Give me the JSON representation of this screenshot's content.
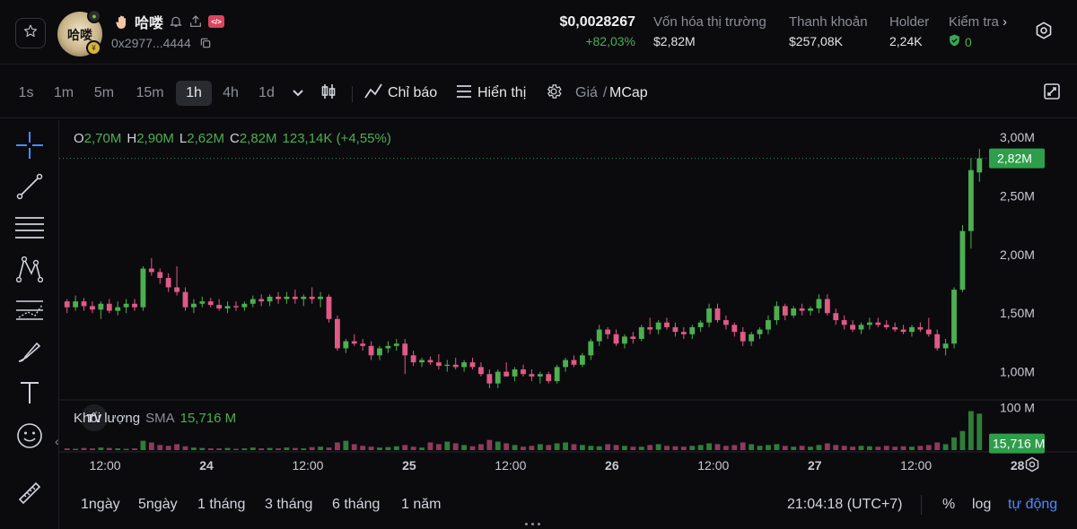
{
  "header": {
    "token_name": "哈喽",
    "avatar_text": "哈喽",
    "address": "0x2977...4444",
    "price": "$0,0028267",
    "price_change": "+82,03%",
    "stats": [
      {
        "label": "Vốn hóa thị trường",
        "value": "$2,82M"
      },
      {
        "label": "Thanh khoản",
        "value": "$257,08K"
      },
      {
        "label": "Holder",
        "value": "2,24K"
      },
      {
        "label": "Kiểm tra",
        "value": "0"
      }
    ],
    "icons": [
      "star-icon",
      "wave-hand-icon",
      "bell-icon",
      "share-icon",
      "code-icon",
      "copy-icon",
      "shield-check-icon",
      "settings-icon"
    ]
  },
  "toolbar": {
    "timeframes": [
      "1s",
      "1m",
      "5m",
      "15m",
      "1h",
      "4h",
      "1d"
    ],
    "active_timeframe": "1h",
    "indicators_label": "Chỉ báo",
    "display_label": "Hiển thị",
    "price_label": "Giá",
    "separator": "/",
    "mcap_label": "MCap"
  },
  "legend": {
    "o_key": "O",
    "o_val": "2,70M",
    "h_key": "H",
    "h_val": "2,90M",
    "l_key": "L",
    "l_val": "2,62M",
    "c_key": "C",
    "c_val": "2,82M",
    "change": "123,14K (+4,55%)"
  },
  "volume_legend": {
    "label": "Khối lượng",
    "sma_label": "SMA",
    "sma_value": "15,716 M"
  },
  "chart_data": {
    "type": "candlestick",
    "y_unit": "market cap (M)",
    "ylim": [
      0.76,
      3.1
    ],
    "price_ticks": [
      "3,00M",
      "2,50M",
      "2,00M",
      "1,50M",
      "1,00M"
    ],
    "price_tick_values": [
      3.0,
      2.5,
      2.0,
      1.5,
      1.0
    ],
    "current_value": 2.82,
    "current_label": "2,82M",
    "volume_ticks": [
      "100 M"
    ],
    "volume_tick_values": [
      100
    ],
    "volume_max": 110,
    "sma_value": 15.716,
    "sma_label": "15,716 M",
    "x_labels": [
      "12:00",
      "24",
      "12:00",
      "25",
      "12:00",
      "26",
      "12:00",
      "27",
      "12:00",
      "28"
    ],
    "x_label_index": [
      4.5,
      16.5,
      28.5,
      40.5,
      52.5,
      64.5,
      76.5,
      88.5,
      100.5,
      112.5
    ],
    "ohlc": [
      [
        1.6,
        1.62,
        1.5,
        1.55
      ],
      [
        1.55,
        1.65,
        1.52,
        1.6
      ],
      [
        1.6,
        1.63,
        1.52,
        1.56
      ],
      [
        1.56,
        1.6,
        1.5,
        1.53
      ],
      [
        1.53,
        1.6,
        1.45,
        1.58
      ],
      [
        1.58,
        1.62,
        1.5,
        1.52
      ],
      [
        1.52,
        1.6,
        1.48,
        1.55
      ],
      [
        1.55,
        1.62,
        1.5,
        1.58
      ],
      [
        1.58,
        1.62,
        1.52,
        1.55
      ],
      [
        1.55,
        1.9,
        1.52,
        1.88
      ],
      [
        1.88,
        1.97,
        1.82,
        1.85
      ],
      [
        1.85,
        1.88,
        1.75,
        1.8
      ],
      [
        1.8,
        1.84,
        1.68,
        1.72
      ],
      [
        1.72,
        1.9,
        1.65,
        1.68
      ],
      [
        1.68,
        1.72,
        1.52,
        1.55
      ],
      [
        1.55,
        1.62,
        1.5,
        1.58
      ],
      [
        1.58,
        1.64,
        1.55,
        1.6
      ],
      [
        1.6,
        1.63,
        1.55,
        1.57
      ],
      [
        1.57,
        1.62,
        1.52,
        1.54
      ],
      [
        1.54,
        1.6,
        1.5,
        1.56
      ],
      [
        1.56,
        1.6,
        1.52,
        1.55
      ],
      [
        1.55,
        1.6,
        1.52,
        1.58
      ],
      [
        1.58,
        1.65,
        1.55,
        1.62
      ],
      [
        1.62,
        1.66,
        1.56,
        1.6
      ],
      [
        1.6,
        1.66,
        1.56,
        1.64
      ],
      [
        1.64,
        1.68,
        1.58,
        1.62
      ],
      [
        1.62,
        1.68,
        1.58,
        1.64
      ],
      [
        1.64,
        1.7,
        1.58,
        1.62
      ],
      [
        1.62,
        1.66,
        1.56,
        1.64
      ],
      [
        1.64,
        1.72,
        1.58,
        1.62
      ],
      [
        1.62,
        1.68,
        1.55,
        1.64
      ],
      [
        1.64,
        1.66,
        1.42,
        1.45
      ],
      [
        1.45,
        1.48,
        1.18,
        1.2
      ],
      [
        1.2,
        1.28,
        1.16,
        1.26
      ],
      [
        1.26,
        1.32,
        1.22,
        1.24
      ],
      [
        1.24,
        1.28,
        1.18,
        1.22
      ],
      [
        1.22,
        1.26,
        1.1,
        1.14
      ],
      [
        1.14,
        1.22,
        1.1,
        1.2
      ],
      [
        1.2,
        1.26,
        1.16,
        1.22
      ],
      [
        1.22,
        1.28,
        1.18,
        1.24
      ],
      [
        1.24,
        1.28,
        0.98,
        1.14
      ],
      [
        1.14,
        1.18,
        1.05,
        1.08
      ],
      [
        1.08,
        1.12,
        1.04,
        1.1
      ],
      [
        1.1,
        1.13,
        1.06,
        1.08
      ],
      [
        1.08,
        1.15,
        1.02,
        1.05
      ],
      [
        1.05,
        1.1,
        1.0,
        1.06
      ],
      [
        1.06,
        1.12,
        1.02,
        1.04
      ],
      [
        1.04,
        1.1,
        1.0,
        1.08
      ],
      [
        1.08,
        1.12,
        1.02,
        1.04
      ],
      [
        1.04,
        1.08,
        0.96,
        0.98
      ],
      [
        0.98,
        1.02,
        0.86,
        0.9
      ],
      [
        0.9,
        1.02,
        0.86,
        1.0
      ],
      [
        1.0,
        1.08,
        0.96,
        0.96
      ],
      [
        0.96,
        1.04,
        0.92,
        1.02
      ],
      [
        1.02,
        1.06,
        0.96,
        0.98
      ],
      [
        0.98,
        1.02,
        0.92,
        0.96
      ],
      [
        0.96,
        1.0,
        0.9,
        0.98
      ],
      [
        0.98,
        1.0,
        0.9,
        0.92
      ],
      [
        0.92,
        1.06,
        0.9,
        1.04
      ],
      [
        1.04,
        1.12,
        1.0,
        1.1
      ],
      [
        1.1,
        1.14,
        1.04,
        1.06
      ],
      [
        1.06,
        1.16,
        1.04,
        1.14
      ],
      [
        1.14,
        1.28,
        1.1,
        1.26
      ],
      [
        1.26,
        1.4,
        1.22,
        1.36
      ],
      [
        1.36,
        1.38,
        1.28,
        1.32
      ],
      [
        1.32,
        1.36,
        1.22,
        1.24
      ],
      [
        1.24,
        1.32,
        1.2,
        1.3
      ],
      [
        1.3,
        1.34,
        1.24,
        1.28
      ],
      [
        1.28,
        1.4,
        1.26,
        1.38
      ],
      [
        1.38,
        1.46,
        1.32,
        1.36
      ],
      [
        1.36,
        1.44,
        1.32,
        1.42
      ],
      [
        1.42,
        1.46,
        1.36,
        1.38
      ],
      [
        1.38,
        1.42,
        1.3,
        1.34
      ],
      [
        1.34,
        1.38,
        1.28,
        1.32
      ],
      [
        1.32,
        1.4,
        1.28,
        1.38
      ],
      [
        1.38,
        1.44,
        1.34,
        1.42
      ],
      [
        1.42,
        1.58,
        1.38,
        1.54
      ],
      [
        1.54,
        1.58,
        1.42,
        1.44
      ],
      [
        1.44,
        1.48,
        1.36,
        1.4
      ],
      [
        1.4,
        1.42,
        1.3,
        1.34
      ],
      [
        1.34,
        1.38,
        1.22,
        1.26
      ],
      [
        1.26,
        1.34,
        1.22,
        1.32
      ],
      [
        1.32,
        1.38,
        1.28,
        1.36
      ],
      [
        1.36,
        1.48,
        1.32,
        1.44
      ],
      [
        1.44,
        1.6,
        1.4,
        1.56
      ],
      [
        1.56,
        1.58,
        1.44,
        1.48
      ],
      [
        1.48,
        1.56,
        1.46,
        1.54
      ],
      [
        1.54,
        1.58,
        1.48,
        1.52
      ],
      [
        1.52,
        1.56,
        1.48,
        1.54
      ],
      [
        1.54,
        1.66,
        1.5,
        1.62
      ],
      [
        1.62,
        1.66,
        1.48,
        1.5
      ],
      [
        1.5,
        1.54,
        1.4,
        1.44
      ],
      [
        1.44,
        1.48,
        1.36,
        1.4
      ],
      [
        1.4,
        1.44,
        1.34,
        1.36
      ],
      [
        1.36,
        1.42,
        1.32,
        1.4
      ],
      [
        1.4,
        1.46,
        1.36,
        1.42
      ],
      [
        1.42,
        1.46,
        1.38,
        1.4
      ],
      [
        1.4,
        1.44,
        1.36,
        1.38
      ],
      [
        1.38,
        1.42,
        1.34,
        1.36
      ],
      [
        1.36,
        1.4,
        1.32,
        1.34
      ],
      [
        1.34,
        1.4,
        1.3,
        1.38
      ],
      [
        1.38,
        1.42,
        1.34,
        1.36
      ],
      [
        1.36,
        1.46,
        1.3,
        1.32
      ],
      [
        1.32,
        1.36,
        1.18,
        1.2
      ],
      [
        1.2,
        1.28,
        1.14,
        1.24
      ],
      [
        1.24,
        1.72,
        1.2,
        1.7
      ],
      [
        1.7,
        2.25,
        1.68,
        2.2
      ],
      [
        2.2,
        2.82,
        2.05,
        2.72
      ],
      [
        2.7,
        2.9,
        2.62,
        2.82
      ]
    ],
    "volume": [
      4,
      3,
      5,
      4,
      6,
      5,
      4,
      3,
      4,
      22,
      18,
      12,
      10,
      14,
      9,
      6,
      5,
      4,
      4,
      5,
      3,
      4,
      6,
      4,
      5,
      4,
      6,
      5,
      4,
      7,
      8,
      6,
      18,
      22,
      14,
      10,
      8,
      6,
      7,
      9,
      12,
      8,
      6,
      18,
      14,
      20,
      16,
      12,
      9,
      14,
      24,
      20,
      16,
      12,
      8,
      10,
      14,
      12,
      16,
      18,
      14,
      12,
      10,
      9,
      14,
      12,
      10,
      8,
      8,
      12,
      14,
      10,
      9,
      8,
      10,
      12,
      16,
      14,
      10,
      12,
      18,
      14,
      10,
      12,
      14,
      10,
      8,
      10,
      8,
      12,
      16,
      12,
      10,
      8,
      10,
      9,
      8,
      10,
      8,
      9,
      8,
      10,
      12,
      18,
      14,
      30,
      45,
      92,
      86
    ],
    "colors": {
      "up": "#4caf50",
      "down": "#e05a85",
      "current_tag": "#2e9e4a",
      "up_volume": "#2e7d3a",
      "down_volume": "#8f3a5b"
    }
  },
  "bottombar": {
    "ranges": [
      "1ngày",
      "5ngày",
      "1 tháng",
      "3 tháng",
      "6 tháng",
      "1 năm"
    ],
    "clock": "21:04:18 (UTC+7)",
    "percent_label": "%",
    "log_label": "log",
    "auto_label": "tự động"
  }
}
